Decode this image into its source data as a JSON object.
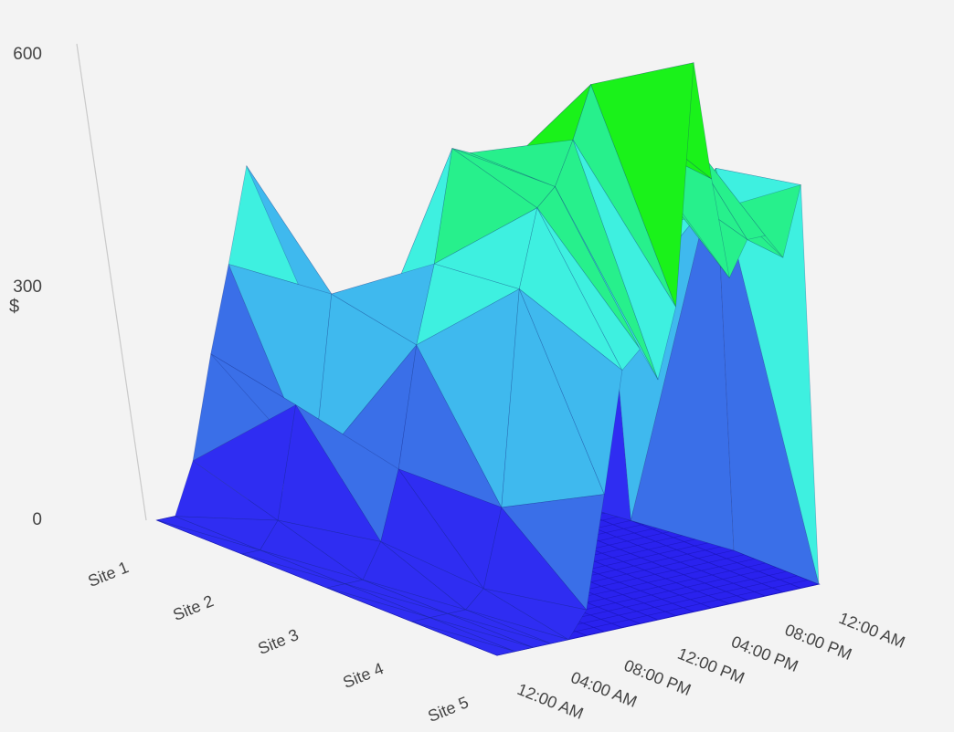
{
  "chart_data": {
    "type": "surface",
    "title": "",
    "ylabel": "$",
    "zlim": [
      0,
      600
    ],
    "z_ticks": [
      "600",
      "300",
      "0"
    ],
    "series_axis": [
      "Site 1",
      "Site 2",
      "Site 3",
      "Site 4",
      "Site 5"
    ],
    "time_axis": [
      "12:00 AM",
      "04:00 AM",
      "08:00 PM",
      "12:00 PM",
      "04:00 PM",
      "08:00 PM",
      "12:00 AM"
    ],
    "time_points": 19,
    "grid": true,
    "colors": {
      "band_0_100": "#2f2df2",
      "band_100_200": "#3a6fe8",
      "band_200_300": "#3fb9ee",
      "band_300_400": "#3ef0e0",
      "band_400_500": "#27f08c",
      "band_500_600": "#1af21a",
      "floor": "#2a22ee",
      "grid_line": "#1d18c4"
    },
    "values": [
      [
        0,
        0,
        60,
        180,
        280,
        390,
        120,
        10,
        40,
        110,
        40,
        30,
        60,
        30,
        20,
        60,
        0,
        0,
        0
      ],
      [
        0,
        0,
        30,
        160,
        80,
        280,
        150,
        90,
        150,
        120,
        200,
        40,
        160,
        170,
        70,
        50,
        0,
        0,
        0
      ],
      [
        0,
        0,
        0,
        40,
        120,
        260,
        350,
        480,
        470,
        430,
        230,
        380,
        400,
        320,
        380,
        330,
        240,
        0,
        0
      ],
      [
        0,
        0,
        0,
        0,
        20,
        110,
        360,
        450,
        470,
        520,
        580,
        560,
        510,
        470,
        540,
        470,
        400,
        450,
        0
      ],
      [
        0,
        0,
        0,
        0,
        0,
        30,
        160,
        300,
        320,
        280,
        360,
        640,
        500,
        380,
        420,
        420,
        390,
        470,
        0
      ]
    ]
  }
}
